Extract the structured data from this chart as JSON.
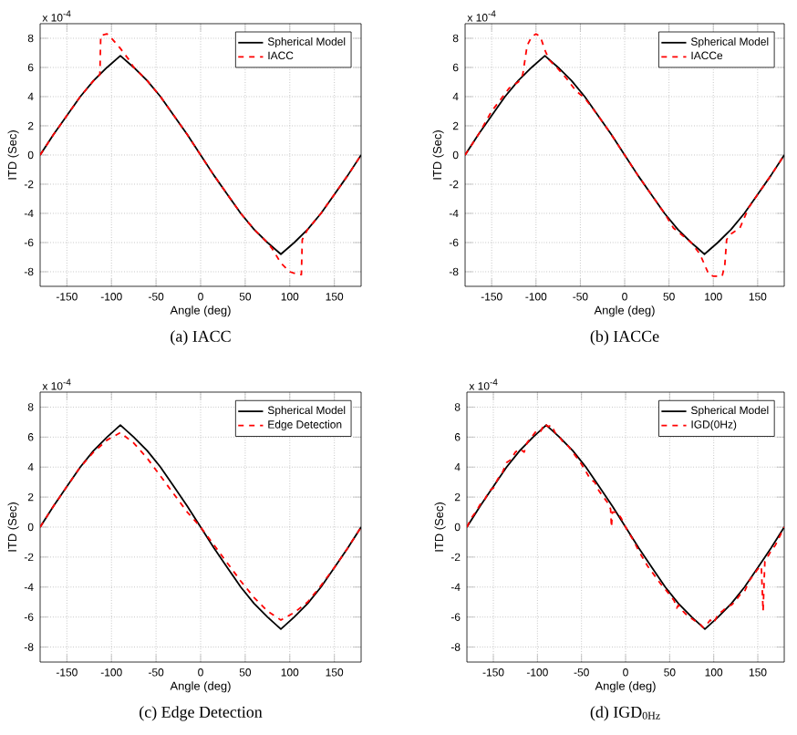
{
  "chart_data": [
    {
      "type": "line",
      "xlabel": "Angle (deg)",
      "ylabel": "ITD (Sec)",
      "xlim": [
        -180,
        180
      ],
      "ylim": [
        -9,
        9
      ],
      "xticks": [
        -150,
        -100,
        -50,
        0,
        50,
        100,
        150
      ],
      "yticks": [
        -8,
        -6,
        -4,
        -2,
        0,
        2,
        4,
        6,
        8
      ],
      "grid": true,
      "legend": "top right",
      "annotations": [
        "x 10$^{-4}$",
        "(a) IACC"
      ],
      "series": [
        {
          "name": "Spherical Model",
          "color": "#000000",
          "line_style": "solid",
          "x": [
            -180,
            -165,
            -150,
            -135,
            -120,
            -105,
            -90,
            -75,
            -60,
            -45,
            -30,
            -15,
            0,
            15,
            30,
            45,
            60,
            75,
            90,
            105,
            120,
            135,
            150,
            165,
            180
          ],
          "values": [
            0,
            1.4,
            2.7,
            4.0,
            5.1,
            6.0,
            6.8,
            6.0,
            5.1,
            4.0,
            2.7,
            1.4,
            0,
            -1.4,
            -2.7,
            -4.0,
            -5.1,
            -6.0,
            -6.8,
            -6.0,
            -5.1,
            -4.0,
            -2.7,
            -1.4,
            0
          ]
        },
        {
          "name": "IACC",
          "color": "#ff0000",
          "line_style": "dashed",
          "x": [
            -180,
            -165,
            -150,
            -135,
            -120,
            -113,
            -112,
            -105,
            -100,
            -90,
            -80,
            -75,
            -60,
            -45,
            -30,
            -15,
            0,
            15,
            30,
            45,
            60,
            75,
            80,
            90,
            100,
            110,
            113,
            114,
            120,
            135,
            150,
            165,
            180
          ],
          "values": [
            0,
            1.4,
            2.7,
            4.0,
            5.1,
            5.5,
            8.2,
            8.3,
            8.0,
            7.3,
            6.5,
            6.0,
            5.1,
            4.0,
            2.7,
            1.4,
            0,
            -1.4,
            -2.7,
            -4.0,
            -5.1,
            -6.0,
            -6.4,
            -7.4,
            -8.0,
            -8.2,
            -8.2,
            -5.8,
            -5.1,
            -4.0,
            -2.7,
            -1.4,
            0
          ]
        }
      ]
    },
    {
      "type": "line",
      "xlabel": "Angle (deg)",
      "ylabel": "ITD (Sec)",
      "xlim": [
        -180,
        180
      ],
      "ylim": [
        -9,
        9
      ],
      "xticks": [
        -150,
        -100,
        -50,
        0,
        50,
        100,
        150
      ],
      "yticks": [
        -8,
        -6,
        -4,
        -2,
        0,
        2,
        4,
        6,
        8
      ],
      "grid": true,
      "legend": "top right",
      "annotations": [
        "x 10$^{-4}$",
        "(b) IACCe"
      ],
      "series": [
        {
          "name": "Spherical Model",
          "color": "#000000",
          "line_style": "solid",
          "x": [
            -180,
            -165,
            -150,
            -135,
            -120,
            -105,
            -90,
            -75,
            -60,
            -45,
            -30,
            -15,
            0,
            15,
            30,
            45,
            60,
            75,
            90,
            105,
            120,
            135,
            150,
            165,
            180
          ],
          "values": [
            0,
            1.4,
            2.7,
            4.0,
            5.1,
            6.0,
            6.8,
            6.0,
            5.1,
            4.0,
            2.7,
            1.4,
            0,
            -1.4,
            -2.7,
            -4.0,
            -5.1,
            -6.0,
            -6.8,
            -6.0,
            -5.1,
            -4.0,
            -2.7,
            -1.4,
            0
          ]
        },
        {
          "name": "IACCe",
          "color": "#ff0000",
          "line_style": "dashed",
          "x": [
            -180,
            -165,
            -150,
            -140,
            -130,
            -120,
            -115,
            -110,
            -105,
            -100,
            -95,
            -90,
            -85,
            -75,
            -65,
            -55,
            -45,
            -30,
            -15,
            0,
            15,
            30,
            45,
            55,
            65,
            75,
            85,
            90,
            95,
            100,
            110,
            113,
            115,
            120,
            130,
            140,
            150,
            165,
            180
          ],
          "values": [
            0,
            1.4,
            3.0,
            3.8,
            4.6,
            5.0,
            5.5,
            7.5,
            8.1,
            8.3,
            8.1,
            7.2,
            6.5,
            5.9,
            5.2,
            4.4,
            3.9,
            2.7,
            1.4,
            0,
            -1.4,
            -2.7,
            -4.0,
            -5.0,
            -5.5,
            -6.0,
            -6.8,
            -7.5,
            -8.2,
            -8.3,
            -8.3,
            -7.5,
            -5.8,
            -5.4,
            -5.0,
            -3.6,
            -2.7,
            -1.4,
            0
          ]
        }
      ]
    },
    {
      "type": "line",
      "xlabel": "Angle (deg)",
      "ylabel": "ITD (Sec)",
      "xlim": [
        -180,
        180
      ],
      "ylim": [
        -9,
        9
      ],
      "xticks": [
        -150,
        -100,
        -50,
        0,
        50,
        100,
        150
      ],
      "yticks": [
        -8,
        -6,
        -4,
        -2,
        0,
        2,
        4,
        6,
        8
      ],
      "grid": true,
      "legend": "top right",
      "annotations": [
        "x 10$^{-4}$",
        "(c) Edge Detection"
      ],
      "series": [
        {
          "name": "Spherical Model",
          "color": "#000000",
          "line_style": "solid",
          "x": [
            -180,
            -165,
            -150,
            -135,
            -120,
            -105,
            -90,
            -75,
            -60,
            -45,
            -30,
            -15,
            0,
            15,
            30,
            45,
            60,
            75,
            90,
            105,
            120,
            135,
            150,
            165,
            180
          ],
          "values": [
            0,
            1.4,
            2.7,
            4.0,
            5.1,
            6.0,
            6.8,
            6.0,
            5.1,
            4.0,
            2.7,
            1.4,
            0,
            -1.4,
            -2.7,
            -4.0,
            -5.1,
            -6.0,
            -6.8,
            -6.0,
            -5.1,
            -4.0,
            -2.7,
            -1.4,
            0
          ]
        },
        {
          "name": "Edge Detection",
          "color": "#ff0000",
          "line_style": "dashed",
          "x": [
            -180,
            -165,
            -150,
            -135,
            -120,
            -105,
            -90,
            -75,
            -60,
            -45,
            -30,
            -15,
            0,
            15,
            30,
            45,
            60,
            75,
            90,
            105,
            120,
            135,
            150,
            165,
            180
          ],
          "values": [
            0,
            1.4,
            2.7,
            4.0,
            5.0,
            5.8,
            6.3,
            5.6,
            4.6,
            3.4,
            2.2,
            1.0,
            0,
            -1.2,
            -2.4,
            -3.6,
            -4.7,
            -5.6,
            -6.2,
            -5.7,
            -5.0,
            -3.9,
            -2.7,
            -1.4,
            0
          ]
        }
      ]
    },
    {
      "type": "line",
      "xlabel": "Angle (deg)",
      "ylabel": "ITD (Sec)",
      "xlim": [
        -180,
        180
      ],
      "ylim": [
        -9,
        9
      ],
      "xticks": [
        -150,
        -100,
        -50,
        0,
        50,
        100,
        150
      ],
      "yticks": [
        -8,
        -6,
        -4,
        -2,
        0,
        2,
        4,
        6,
        8
      ],
      "grid": true,
      "legend": "top right",
      "annotations": [
        "x 10$^{-4}$",
        "(d) IGD$_{0Hz}$"
      ],
      "series": [
        {
          "name": "Spherical Model",
          "color": "#000000",
          "line_style": "solid",
          "x": [
            -180,
            -165,
            -150,
            -135,
            -120,
            -105,
            -90,
            -75,
            -60,
            -45,
            -30,
            -15,
            0,
            15,
            30,
            45,
            60,
            75,
            90,
            105,
            120,
            135,
            150,
            165,
            180
          ],
          "values": [
            0,
            1.4,
            2.7,
            4.0,
            5.1,
            6.0,
            6.8,
            6.0,
            5.1,
            4.0,
            2.7,
            1.4,
            0,
            -1.4,
            -2.7,
            -4.0,
            -5.1,
            -6.0,
            -6.8,
            -6.0,
            -5.1,
            -4.0,
            -2.7,
            -1.4,
            0
          ]
        },
        {
          "name": "IGD(0Hz)",
          "color": "#ff0000",
          "line_style": "dashed",
          "x": [
            -180,
            -175,
            -170,
            -165,
            -160,
            -155,
            -150,
            -145,
            -140,
            -135,
            -130,
            -125,
            -120,
            -115,
            -112,
            -108,
            -104,
            -100,
            -96,
            -92,
            -88,
            -84,
            -80,
            -75,
            -70,
            -65,
            -60,
            -55,
            -50,
            -45,
            -40,
            -35,
            -30,
            -25,
            -20,
            -17,
            -16,
            -15,
            -10,
            -5,
            0,
            5,
            10,
            15,
            20,
            25,
            30,
            40,
            50,
            55,
            58,
            60,
            65,
            70,
            80,
            85,
            88,
            92,
            96,
            100,
            105,
            110,
            115,
            120,
            125,
            130,
            135,
            140,
            145,
            150,
            154,
            156,
            158,
            165,
            170,
            175,
            180
          ],
          "values": [
            0,
            0.6,
            1.0,
            1.5,
            1.8,
            2.4,
            2.6,
            3.2,
            3.6,
            4.3,
            4.5,
            5.0,
            5.2,
            5.0,
            5.6,
            5.9,
            6.2,
            6.5,
            6.4,
            6.9,
            6.7,
            6.8,
            6.3,
            6.0,
            5.6,
            5.4,
            5.0,
            4.6,
            4.2,
            3.7,
            3.2,
            3.0,
            2.4,
            2.0,
            1.6,
            1.2,
            0.0,
            1.0,
            1.0,
            0.6,
            0.0,
            -0.5,
            -1.0,
            -1.6,
            -2.1,
            -2.6,
            -3.0,
            -3.8,
            -4.5,
            -4.9,
            -5.4,
            -5.2,
            -5.6,
            -5.9,
            -6.3,
            -6.5,
            -6.7,
            -6.5,
            -6.2,
            -6.4,
            -5.8,
            -5.6,
            -5.3,
            -5.2,
            -4.9,
            -4.5,
            -4.3,
            -3.6,
            -3.2,
            -2.8,
            -2.6,
            -5.6,
            -2.3,
            -1.6,
            -1.2,
            -0.6,
            0
          ]
        }
      ]
    }
  ]
}
